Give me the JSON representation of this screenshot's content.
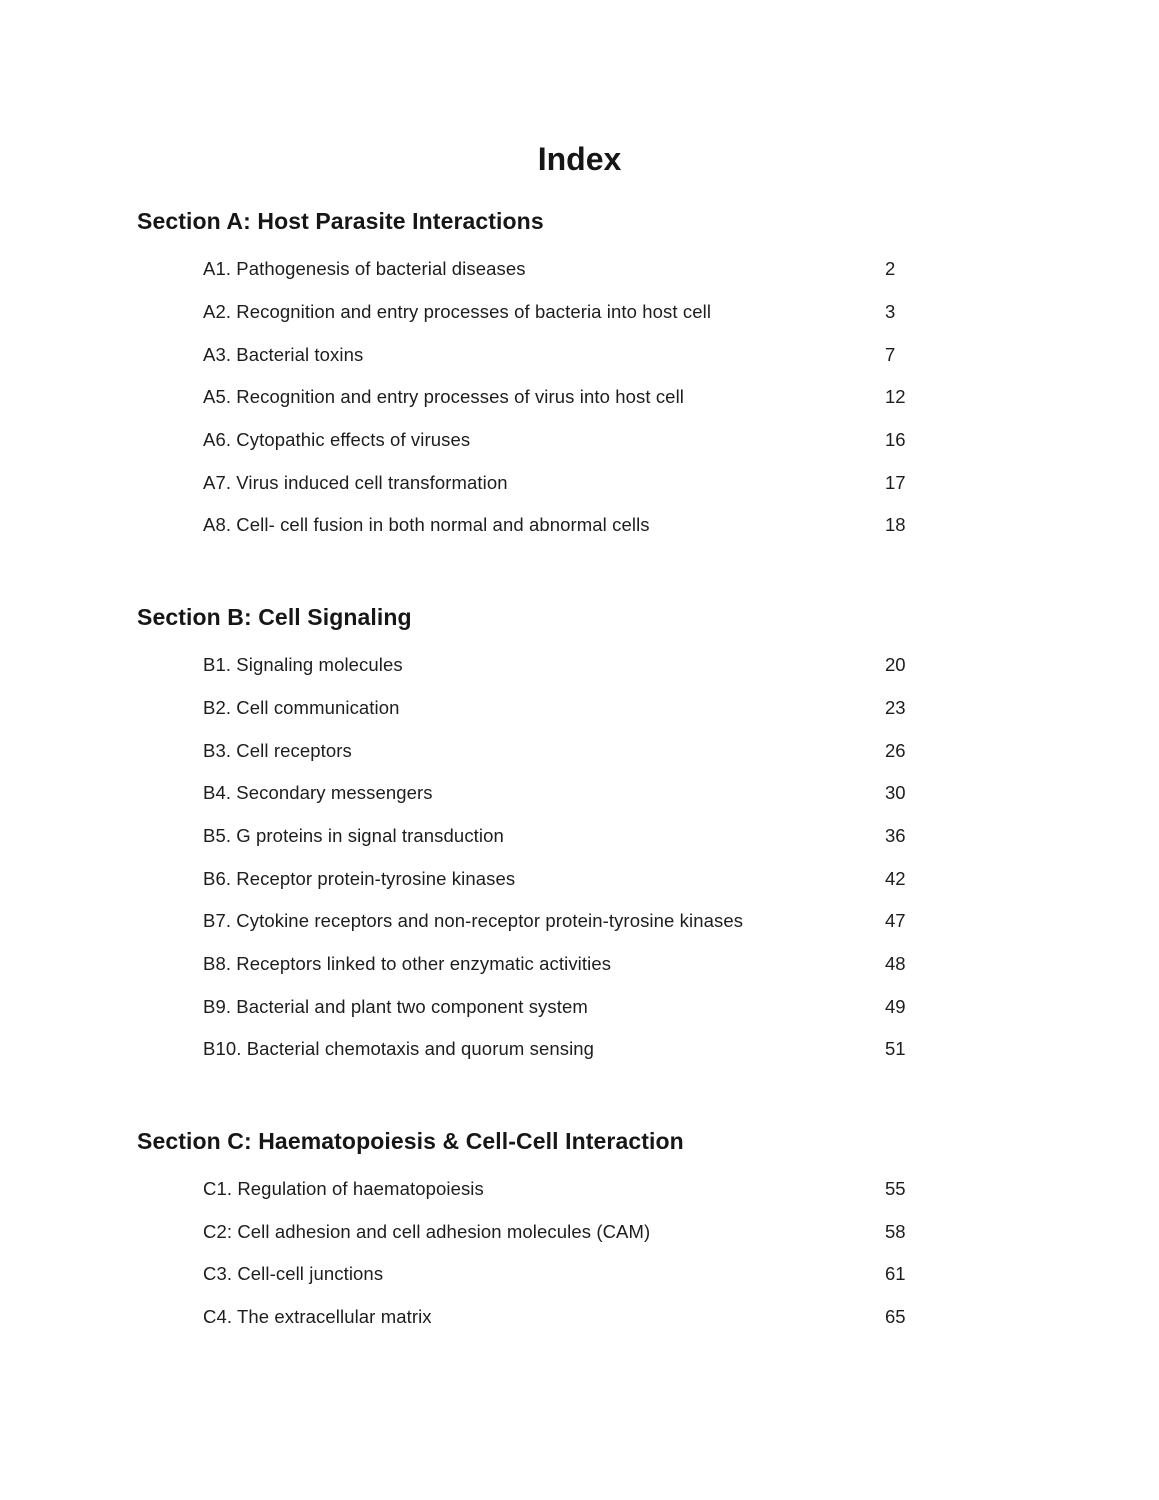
{
  "page": {
    "title": "Index",
    "background": "#ffffff",
    "text_color": "#1d1d1d",
    "sections": [
      {
        "heading": "Section A: Host Parasite Interactions",
        "entries": [
          {
            "label": "A1. Pathogenesis of bacterial diseases",
            "page": "2"
          },
          {
            "label": "A2. Recognition and entry processes of bacteria into host cell",
            "page": "3"
          },
          {
            "label": "A3. Bacterial toxins",
            "page": "7"
          },
          {
            "label": "A5. Recognition and entry processes of virus into host cell",
            "page": "12"
          },
          {
            "label": "A6. Cytopathic effects of viruses",
            "page": "16"
          },
          {
            "label": "A7. Virus induced cell transformation",
            "page": "17"
          },
          {
            "label": "A8. Cell- cell fusion in both normal and abnormal cells",
            "page": "18"
          }
        ]
      },
      {
        "heading": "Section B: Cell Signaling",
        "entries": [
          {
            "label": "B1. Signaling molecules",
            "page": "20"
          },
          {
            "label": "B2. Cell communication",
            "page": "23"
          },
          {
            "label": "B3. Cell receptors",
            "page": "26"
          },
          {
            "label": "B4. Secondary messengers",
            "page": "30"
          },
          {
            "label": "B5. G proteins in signal transduction",
            "page": "36"
          },
          {
            "label": "B6. Receptor protein-tyrosine kinases",
            "page": "42"
          },
          {
            "label": "B7. Cytokine receptors and non-receptor protein-tyrosine kinases",
            "page": "47"
          },
          {
            "label": "B8. Receptors linked to other enzymatic activities",
            "page": "48"
          },
          {
            "label": "B9. Bacterial and plant two component system",
            "page": "49"
          },
          {
            "label": "B10. Bacterial chemotaxis and quorum sensing",
            "page": "51"
          }
        ]
      },
      {
        "heading": "Section C: Haematopoiesis & Cell-Cell Interaction",
        "entries": [
          {
            "label": "C1. Regulation of haematopoiesis",
            "page": "55"
          },
          {
            "label": "C2: Cell adhesion and cell adhesion molecules (CAM)",
            "page": "58"
          },
          {
            "label": "C3. Cell-cell junctions",
            "page": "61"
          },
          {
            "label": "C4. The extracellular matrix",
            "page": "65"
          }
        ]
      }
    ]
  }
}
